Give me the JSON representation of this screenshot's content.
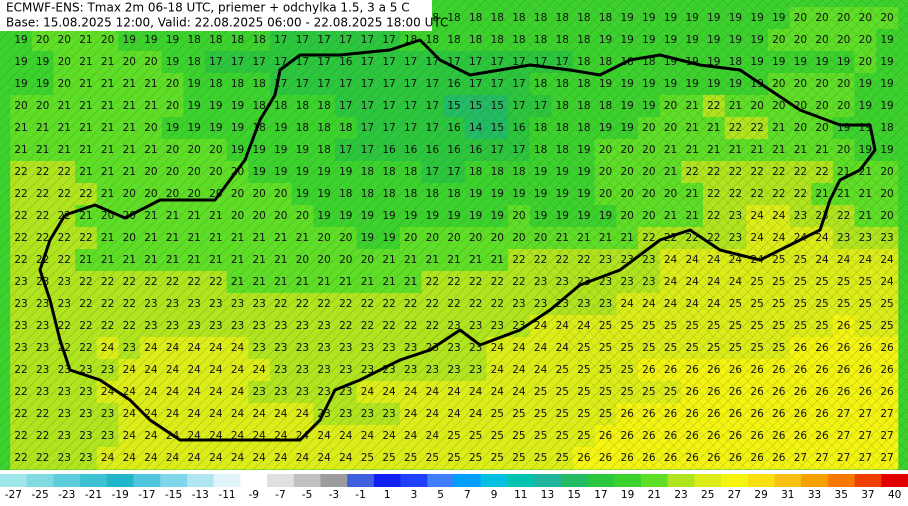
{
  "header": {
    "title": "ECMWF-ENS: Tmax 2m 06-18 UTC, priemer + odchylka 1.5, 3 a 5 C",
    "subtitle": "Base: 15.08.2025 12:00, Valid: 22.08.2025 06:00 - 22.08.2025 18:00 UTC"
  },
  "grid": {
    "rows": [
      [
        null,
        null,
        null,
        null,
        null,
        null,
        null,
        null,
        null,
        null,
        null,
        null,
        null,
        null,
        null,
        null,
        null,
        null,
        null,
        18,
        18,
        18,
        18,
        18,
        18,
        18,
        18,
        18,
        19,
        19,
        19,
        19,
        19,
        19,
        19,
        19,
        20,
        20,
        20,
        20,
        20
      ],
      [
        19,
        20,
        20,
        21,
        20,
        19,
        19,
        19,
        18,
        18,
        18,
        18,
        17,
        17,
        17,
        17,
        17,
        17,
        18,
        18,
        18,
        18,
        18,
        18,
        18,
        18,
        18,
        19,
        19,
        19,
        19,
        19,
        19,
        19,
        19,
        20,
        20,
        20,
        20,
        20,
        19
      ],
      [
        19,
        19,
        20,
        21,
        21,
        20,
        20,
        19,
        18,
        17,
        17,
        17,
        17,
        17,
        17,
        16,
        17,
        17,
        17,
        17,
        17,
        17,
        17,
        17,
        17,
        17,
        18,
        18,
        18,
        18,
        19,
        19,
        19,
        18,
        19,
        19,
        19,
        19,
        19,
        20,
        19
      ],
      [
        19,
        19,
        20,
        21,
        21,
        21,
        21,
        20,
        19,
        18,
        18,
        18,
        17,
        17,
        17,
        17,
        17,
        17,
        17,
        17,
        16,
        17,
        17,
        17,
        18,
        18,
        18,
        19,
        19,
        19,
        19,
        19,
        19,
        19,
        19,
        20,
        20,
        20,
        20,
        19,
        19
      ],
      [
        20,
        20,
        21,
        21,
        21,
        21,
        21,
        20,
        19,
        19,
        19,
        18,
        18,
        18,
        18,
        17,
        17,
        17,
        17,
        17,
        15,
        15,
        15,
        17,
        17,
        18,
        18,
        18,
        19,
        19,
        20,
        21,
        22,
        21,
        20,
        20,
        20,
        20,
        20,
        19,
        19
      ],
      [
        21,
        21,
        21,
        21,
        21,
        21,
        20,
        19,
        19,
        19,
        19,
        18,
        19,
        18,
        18,
        18,
        17,
        17,
        17,
        17,
        16,
        14,
        15,
        16,
        18,
        18,
        18,
        19,
        19,
        20,
        20,
        21,
        21,
        22,
        22,
        21,
        20,
        20,
        19,
        19,
        18
      ],
      [
        21,
        21,
        21,
        21,
        21,
        21,
        21,
        20,
        20,
        20,
        19,
        19,
        19,
        19,
        18,
        17,
        17,
        16,
        16,
        16,
        16,
        16,
        17,
        17,
        18,
        18,
        19,
        20,
        20,
        20,
        21,
        21,
        21,
        21,
        21,
        21,
        21,
        21,
        20,
        19,
        19
      ],
      [
        22,
        22,
        22,
        21,
        21,
        21,
        20,
        20,
        20,
        20,
        20,
        19,
        19,
        19,
        19,
        19,
        18,
        18,
        18,
        17,
        17,
        18,
        18,
        18,
        19,
        19,
        19,
        20,
        20,
        20,
        21,
        22,
        22,
        22,
        22,
        22,
        22,
        22,
        21,
        21,
        20
      ],
      [
        22,
        22,
        22,
        22,
        21,
        20,
        20,
        20,
        20,
        20,
        20,
        20,
        20,
        19,
        19,
        18,
        18,
        18,
        18,
        18,
        18,
        19,
        19,
        19,
        19,
        19,
        19,
        20,
        20,
        20,
        20,
        21,
        22,
        22,
        22,
        22,
        22,
        21,
        21,
        21,
        20
      ],
      [
        22,
        22,
        22,
        21,
        20,
        20,
        21,
        21,
        21,
        21,
        20,
        20,
        20,
        20,
        19,
        19,
        19,
        19,
        19,
        19,
        19,
        19,
        19,
        20,
        19,
        19,
        19,
        19,
        20,
        20,
        21,
        21,
        22,
        23,
        24,
        24,
        23,
        23,
        22,
        21,
        20
      ],
      [
        22,
        22,
        22,
        22,
        21,
        20,
        21,
        21,
        21,
        21,
        21,
        21,
        21,
        21,
        20,
        20,
        19,
        19,
        20,
        20,
        20,
        20,
        20,
        20,
        20,
        21,
        21,
        21,
        21,
        22,
        22,
        22,
        22,
        23,
        24,
        24,
        24,
        24,
        23,
        23,
        23
      ],
      [
        22,
        22,
        22,
        21,
        21,
        21,
        21,
        21,
        21,
        21,
        21,
        21,
        21,
        20,
        20,
        20,
        20,
        21,
        21,
        21,
        21,
        21,
        21,
        22,
        22,
        22,
        22,
        23,
        23,
        23,
        24,
        24,
        24,
        24,
        24,
        25,
        25,
        24,
        24,
        24,
        24
      ],
      [
        23,
        23,
        23,
        22,
        22,
        22,
        22,
        22,
        22,
        22,
        21,
        21,
        21,
        21,
        21,
        21,
        21,
        21,
        21,
        22,
        22,
        22,
        22,
        22,
        23,
        23,
        23,
        23,
        23,
        23,
        24,
        24,
        24,
        24,
        25,
        25,
        25,
        25,
        25,
        25,
        24
      ],
      [
        23,
        23,
        23,
        22,
        22,
        22,
        23,
        23,
        23,
        23,
        23,
        23,
        22,
        22,
        22,
        22,
        22,
        22,
        22,
        22,
        22,
        22,
        22,
        23,
        23,
        23,
        23,
        23,
        24,
        24,
        24,
        24,
        24,
        25,
        25,
        25,
        25,
        25,
        25,
        25,
        25
      ],
      [
        23,
        23,
        22,
        22,
        22,
        22,
        23,
        23,
        23,
        23,
        23,
        23,
        23,
        23,
        23,
        22,
        22,
        22,
        22,
        22,
        23,
        23,
        23,
        23,
        24,
        24,
        24,
        25,
        25,
        25,
        25,
        25,
        25,
        25,
        25,
        25,
        25,
        25,
        26,
        25,
        25
      ],
      [
        23,
        23,
        22,
        22,
        24,
        23,
        24,
        24,
        24,
        24,
        24,
        23,
        23,
        23,
        23,
        23,
        23,
        23,
        23,
        23,
        23,
        23,
        24,
        24,
        24,
        24,
        25,
        25,
        25,
        25,
        25,
        25,
        25,
        25,
        25,
        25,
        26,
        26,
        26,
        26,
        26
      ],
      [
        22,
        23,
        23,
        23,
        23,
        24,
        24,
        24,
        24,
        24,
        24,
        24,
        23,
        23,
        23,
        23,
        23,
        23,
        23,
        23,
        23,
        23,
        24,
        24,
        24,
        25,
        25,
        25,
        25,
        26,
        26,
        26,
        26,
        26,
        26,
        26,
        26,
        26,
        26,
        26,
        26
      ],
      [
        22,
        23,
        23,
        23,
        24,
        24,
        24,
        24,
        24,
        24,
        24,
        23,
        23,
        23,
        23,
        23,
        24,
        24,
        24,
        24,
        24,
        24,
        24,
        24,
        25,
        25,
        25,
        25,
        25,
        25,
        25,
        26,
        26,
        26,
        26,
        26,
        26,
        26,
        26,
        26,
        26
      ],
      [
        22,
        22,
        23,
        23,
        23,
        24,
        24,
        24,
        24,
        24,
        24,
        24,
        24,
        24,
        23,
        23,
        23,
        23,
        24,
        24,
        24,
        24,
        25,
        25,
        25,
        25,
        25,
        25,
        26,
        26,
        26,
        26,
        26,
        26,
        26,
        26,
        26,
        26,
        27,
        27,
        27
      ],
      [
        22,
        22,
        23,
        23,
        23,
        24,
        24,
        24,
        24,
        24,
        24,
        24,
        24,
        24,
        24,
        24,
        24,
        24,
        24,
        24,
        25,
        25,
        25,
        25,
        25,
        25,
        25,
        26,
        26,
        26,
        26,
        26,
        26,
        26,
        26,
        26,
        26,
        26,
        27,
        27,
        27
      ],
      [
        22,
        22,
        23,
        23,
        24,
        24,
        24,
        24,
        24,
        24,
        24,
        24,
        24,
        24,
        24,
        24,
        25,
        25,
        25,
        25,
        25,
        25,
        25,
        25,
        25,
        25,
        26,
        26,
        26,
        26,
        26,
        26,
        26,
        26,
        26,
        26,
        27,
        27,
        27,
        27,
        27
      ]
    ]
  },
  "colorbar": {
    "ticks": [
      -27,
      -25,
      -23,
      -21,
      -19,
      -17,
      -15,
      -13,
      -11,
      -9,
      -7,
      -5,
      -3,
      -1,
      1,
      3,
      5,
      7,
      9,
      11,
      13,
      15,
      17,
      19,
      21,
      23,
      25,
      27,
      29,
      31,
      33,
      35,
      37,
      40
    ],
    "colors": [
      "#a0e6ea",
      "#80dae2",
      "#5ecedc",
      "#3cc2d2",
      "#22b6ca",
      "#50c6de",
      "#80d6ea",
      "#b0e6f2",
      "#e0f4fa",
      "#ffffff",
      "#e0e0e0",
      "#c0c0c0",
      "#9c9c9c",
      "#4060e0",
      "#1020f0",
      "#2040ff",
      "#4080ff",
      "#00a0ff",
      "#00c0e0",
      "#00c4b0",
      "#20b49c",
      "#22bc64",
      "#2cc63e",
      "#3cd22e",
      "#5ede26",
      "#b0e41e",
      "#dcec18",
      "#f4f410",
      "#f8e010",
      "#f8c010",
      "#f8a000",
      "#f87800",
      "#f04000",
      "#e00000"
    ]
  }
}
